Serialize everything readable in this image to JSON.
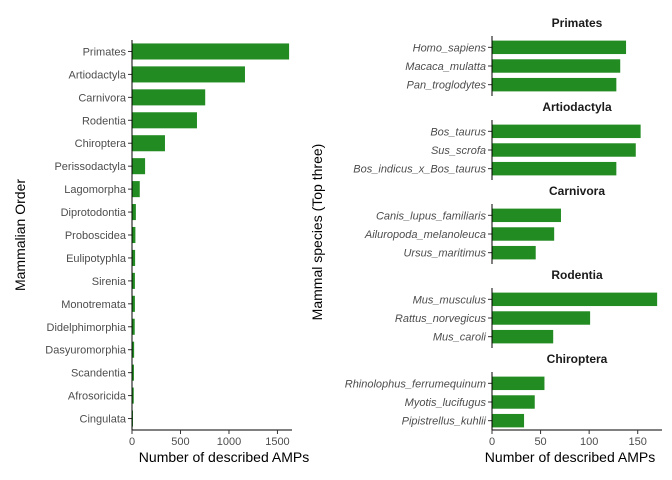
{
  "chart_data": [
    {
      "type": "bar",
      "orientation": "horizontal",
      "xlabel": "Number of described AMPs",
      "ylabel": "Mammalian Order",
      "xlim": [
        0,
        1650
      ],
      "xticks": [
        0,
        500,
        1000,
        1500
      ],
      "categories": [
        "Primates",
        "Artiodactyla",
        "Carnivora",
        "Rodentia",
        "Chiroptera",
        "Perissodactyla",
        "Lagomorpha",
        "Diprotodontia",
        "Proboscidea",
        "Eulipotyphla",
        "Sirenia",
        "Monotremata",
        "Didelphimorphia",
        "Dasyuromorphia",
        "Scandentia",
        "Afrosoricida",
        "Cingulata"
      ],
      "values": [
        1620,
        1165,
        755,
        670,
        340,
        135,
        80,
        40,
        35,
        32,
        30,
        30,
        28,
        22,
        20,
        18,
        10
      ],
      "bar_color": "#228b22",
      "grid": false
    },
    {
      "type": "bar",
      "orientation": "horizontal",
      "faceted": true,
      "xlabel": "Number of described AMPs",
      "ylabel": "Mammal species (Top three)",
      "xlim": [
        0,
        175
      ],
      "xticks": [
        0,
        50,
        100,
        150
      ],
      "bar_color": "#228b22",
      "grid": false,
      "facets": [
        {
          "title": "Primates",
          "categories": [
            "Homo_sapiens",
            "Macaca_mulatta",
            "Pan_troglodytes"
          ],
          "values": [
            138,
            132,
            128
          ]
        },
        {
          "title": "Artiodactyla",
          "categories": [
            "Bos_taurus",
            "Sus_scrofa",
            "Bos_indicus_x_Bos_taurus"
          ],
          "values": [
            153,
            148,
            128
          ]
        },
        {
          "title": "Carnivora",
          "categories": [
            "Canis_lupus_familiaris",
            "Ailuropoda_melanoleuca",
            "Ursus_maritimus"
          ],
          "values": [
            71,
            64,
            45
          ]
        },
        {
          "title": "Rodentia",
          "categories": [
            "Mus_musculus",
            "Rattus_norvegicus",
            "Mus_caroli"
          ],
          "values": [
            170,
            101,
            63
          ]
        },
        {
          "title": "Chiroptera",
          "categories": [
            "Rhinolophus_ferrumequinum",
            "Myotis_lucifugus",
            "Pipistrellus_kuhlii"
          ],
          "values": [
            54,
            44,
            33
          ]
        }
      ]
    }
  ]
}
